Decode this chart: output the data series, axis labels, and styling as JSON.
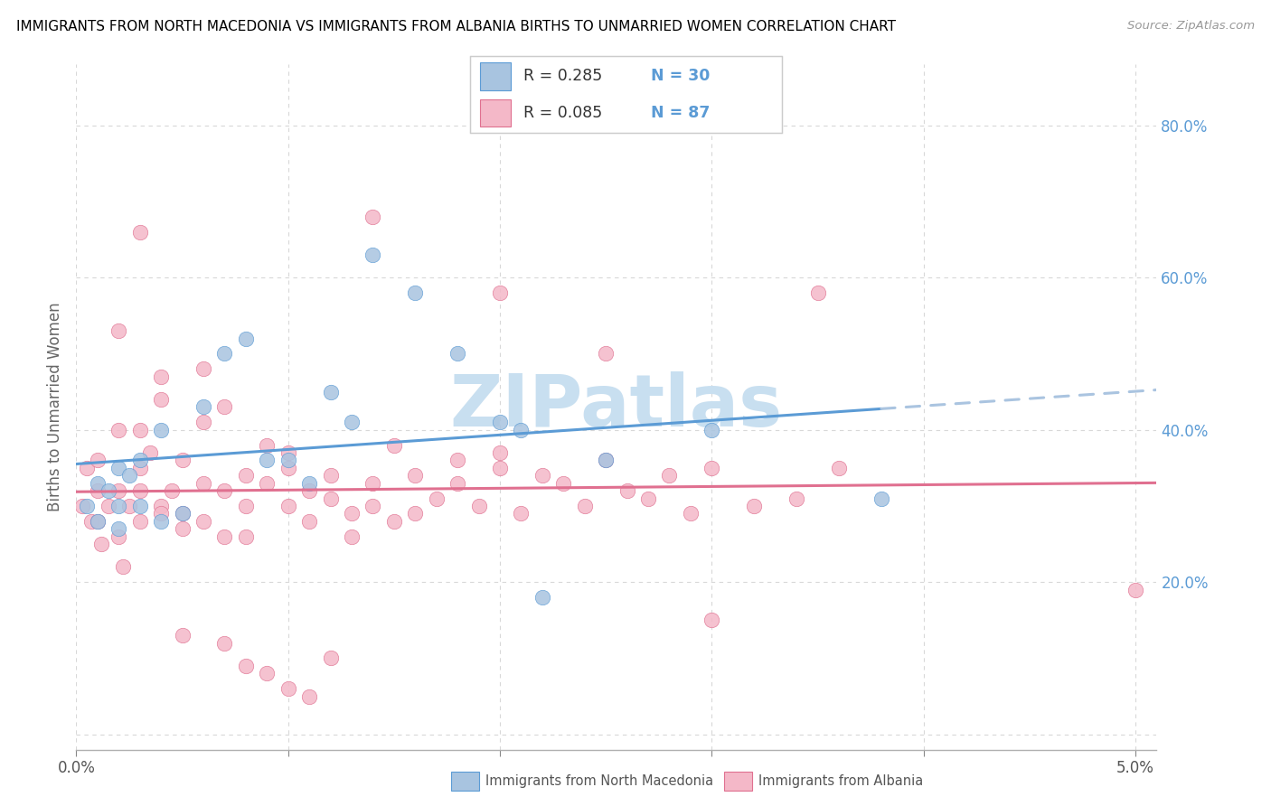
{
  "title": "IMMIGRANTS FROM NORTH MACEDONIA VS IMMIGRANTS FROM ALBANIA BIRTHS TO UNMARRIED WOMEN CORRELATION CHART",
  "source": "Source: ZipAtlas.com",
  "ylabel": "Births to Unmarried Women",
  "legend_label1": "Immigrants from North Macedonia",
  "legend_label2": "Immigrants from Albania",
  "R1": 0.285,
  "N1": 30,
  "R2": 0.085,
  "N2": 87,
  "color1": "#a8c4e0",
  "color2": "#f4b8c8",
  "trendline1_color": "#5b9bd5",
  "trendline2_color": "#e07090",
  "trendline1_dash_color": "#aac4e0",
  "watermark_color": "#c8dff0",
  "ytick_color": "#5b9bd5",
  "grid_color": "#d8d8d8",
  "xlim": [
    0.0,
    0.051
  ],
  "ylim": [
    -0.02,
    0.88
  ],
  "scatter1_x": [
    0.0005,
    0.001,
    0.001,
    0.0015,
    0.002,
    0.002,
    0.002,
    0.0025,
    0.003,
    0.003,
    0.004,
    0.004,
    0.005,
    0.006,
    0.007,
    0.008,
    0.009,
    0.01,
    0.011,
    0.012,
    0.013,
    0.014,
    0.016,
    0.018,
    0.02,
    0.021,
    0.022,
    0.025,
    0.03,
    0.038
  ],
  "scatter1_y": [
    0.3,
    0.28,
    0.33,
    0.32,
    0.3,
    0.35,
    0.27,
    0.34,
    0.3,
    0.36,
    0.28,
    0.4,
    0.29,
    0.43,
    0.5,
    0.52,
    0.36,
    0.36,
    0.33,
    0.45,
    0.41,
    0.63,
    0.58,
    0.5,
    0.41,
    0.4,
    0.18,
    0.36,
    0.4,
    0.31
  ],
  "scatter2_x": [
    0.0003,
    0.0005,
    0.0007,
    0.001,
    0.001,
    0.001,
    0.0012,
    0.0015,
    0.002,
    0.002,
    0.002,
    0.0022,
    0.0025,
    0.003,
    0.003,
    0.003,
    0.003,
    0.0035,
    0.004,
    0.004,
    0.004,
    0.0045,
    0.005,
    0.005,
    0.005,
    0.006,
    0.006,
    0.006,
    0.007,
    0.007,
    0.007,
    0.008,
    0.008,
    0.008,
    0.009,
    0.009,
    0.01,
    0.01,
    0.01,
    0.011,
    0.011,
    0.012,
    0.012,
    0.013,
    0.013,
    0.014,
    0.014,
    0.015,
    0.015,
    0.016,
    0.016,
    0.017,
    0.018,
    0.018,
    0.019,
    0.02,
    0.02,
    0.021,
    0.022,
    0.023,
    0.024,
    0.025,
    0.026,
    0.027,
    0.028,
    0.029,
    0.03,
    0.032,
    0.034,
    0.036,
    0.014,
    0.02,
    0.025,
    0.03,
    0.035,
    0.05,
    0.002,
    0.003,
    0.004,
    0.005,
    0.006,
    0.007,
    0.008,
    0.009,
    0.01,
    0.011,
    0.012
  ],
  "scatter2_y": [
    0.3,
    0.35,
    0.28,
    0.28,
    0.36,
    0.32,
    0.25,
    0.3,
    0.26,
    0.32,
    0.4,
    0.22,
    0.3,
    0.28,
    0.35,
    0.32,
    0.4,
    0.37,
    0.3,
    0.44,
    0.29,
    0.32,
    0.27,
    0.36,
    0.29,
    0.33,
    0.41,
    0.28,
    0.32,
    0.43,
    0.26,
    0.34,
    0.3,
    0.26,
    0.33,
    0.38,
    0.35,
    0.3,
    0.37,
    0.32,
    0.28,
    0.34,
    0.31,
    0.29,
    0.26,
    0.3,
    0.33,
    0.28,
    0.38,
    0.34,
    0.29,
    0.31,
    0.33,
    0.36,
    0.3,
    0.35,
    0.37,
    0.29,
    0.34,
    0.33,
    0.3,
    0.36,
    0.32,
    0.31,
    0.34,
    0.29,
    0.35,
    0.3,
    0.31,
    0.35,
    0.68,
    0.58,
    0.5,
    0.15,
    0.58,
    0.19,
    0.53,
    0.66,
    0.47,
    0.13,
    0.48,
    0.12,
    0.09,
    0.08,
    0.06,
    0.05,
    0.1
  ]
}
